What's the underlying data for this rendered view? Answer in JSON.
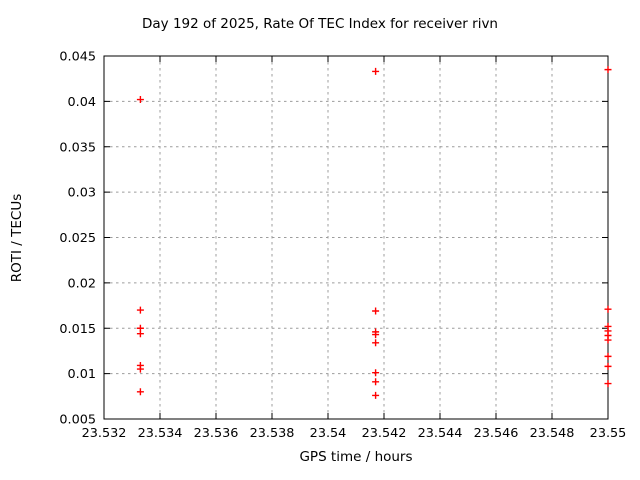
{
  "window": {
    "background": "#ffffff"
  },
  "chart_data": {
    "type": "scatter",
    "title": "Day 192 of 2025, Rate Of TEC Index for receiver rivn",
    "xlabel": "GPS time / hours",
    "ylabel": "ROTI / TECUs",
    "xlim": [
      23.532,
      23.55
    ],
    "ylim": [
      0.005,
      0.045
    ],
    "xticks": [
      23.532,
      23.534,
      23.536,
      23.538,
      23.54,
      23.542,
      23.544,
      23.546,
      23.548,
      23.55
    ],
    "xtick_labels": [
      "23.532",
      "23.534",
      "23.536",
      "23.538",
      "23.54",
      "23.542",
      "23.544",
      "23.546",
      "23.548",
      "23.55"
    ],
    "yticks": [
      0.005,
      0.01,
      0.015,
      0.02,
      0.025,
      0.03,
      0.035,
      0.04,
      0.045
    ],
    "ytick_labels": [
      "0.005",
      "0.01",
      "0.015",
      "0.02",
      "0.025",
      "0.03",
      "0.035",
      "0.04",
      "0.045"
    ],
    "grid": true,
    "legend": "none",
    "marker": {
      "shape": "plus",
      "color": "#ff0000",
      "size": 7
    },
    "colors": {
      "grid": "#9c9c9c",
      "axis": "#000000",
      "point": "#ff0000"
    },
    "series": [
      {
        "name": "roti",
        "points": [
          [
            23.5333,
            0.0402
          ],
          [
            23.5333,
            0.017
          ],
          [
            23.5333,
            0.015
          ],
          [
            23.5333,
            0.0144
          ],
          [
            23.5333,
            0.0109
          ],
          [
            23.5333,
            0.0105
          ],
          [
            23.5333,
            0.008
          ],
          [
            23.5417,
            0.0433
          ],
          [
            23.5417,
            0.0169
          ],
          [
            23.5417,
            0.0146
          ],
          [
            23.5417,
            0.0143
          ],
          [
            23.5417,
            0.0134
          ],
          [
            23.5417,
            0.0101
          ],
          [
            23.5417,
            0.0091
          ],
          [
            23.5417,
            0.0076
          ],
          [
            23.55,
            0.0435
          ],
          [
            23.55,
            0.0171
          ],
          [
            23.55,
            0.0152
          ],
          [
            23.55,
            0.0147
          ],
          [
            23.55,
            0.0142
          ],
          [
            23.55,
            0.0137
          ],
          [
            23.55,
            0.0119
          ],
          [
            23.55,
            0.0108
          ],
          [
            23.55,
            0.0089
          ]
        ]
      }
    ]
  }
}
